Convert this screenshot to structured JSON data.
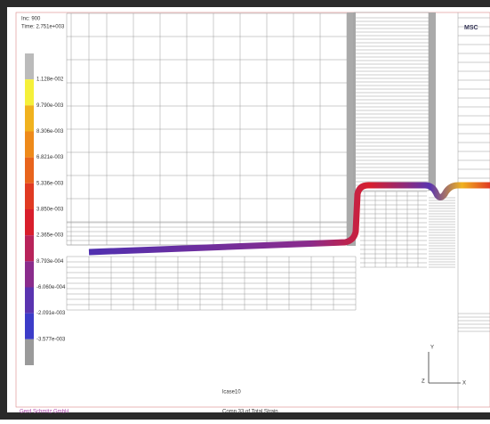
{
  "header": {
    "increment": "Inc: 900",
    "time": "Time: 2.751e+003",
    "logo": "MSC"
  },
  "legend": {
    "entries": [
      {
        "label": "1.128e-002",
        "color": "#f5f03a"
      },
      {
        "label": "9.790e-003",
        "color": "#f0b21e"
      },
      {
        "label": "8.306e-003",
        "color": "#ee8a1a"
      },
      {
        "label": "6.821e-003",
        "color": "#e8641c"
      },
      {
        "label": "5.336e-003",
        "color": "#e03a22"
      },
      {
        "label": "3.850e-003",
        "color": "#d81e2c"
      },
      {
        "label": "2.365e-003",
        "color": "#b8235a"
      },
      {
        "label": "8.793e-004",
        "color": "#8a2c8c"
      },
      {
        "label": "-6.060e-004",
        "color": "#5a34b0"
      },
      {
        "label": "-2.091e-003",
        "color": "#3c3cc8"
      },
      {
        "label": "-3.577e-003",
        "color": "#9a9a9a"
      }
    ]
  },
  "footer": {
    "case": "lcase10",
    "quantity": "Comp 33 of Total Strain",
    "company": "Gerd Schmitz GmbH"
  },
  "triad": {
    "y": "Y",
    "z": "Z",
    "x": "X"
  }
}
